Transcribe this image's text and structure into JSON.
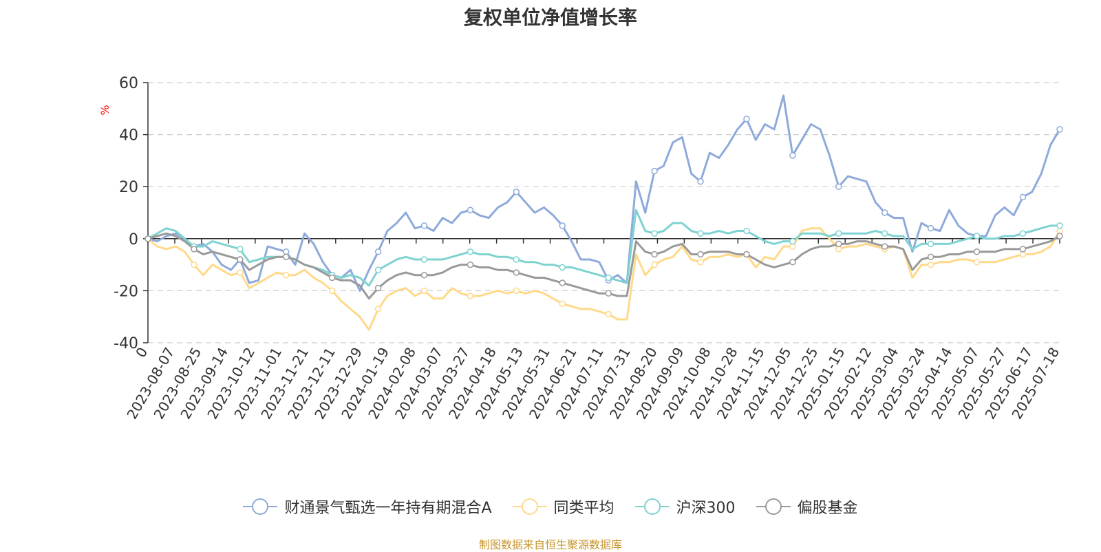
{
  "title": "复权单位净值增长率",
  "source_note": "制图数据来自恒生聚源数据库",
  "colors": {
    "fund": "#8eaadb",
    "peer_avg": "#ffd98a",
    "hs300": "#7ed3d1",
    "equity_fund": "#999999",
    "axis": "#333333",
    "grid": "#cccccc",
    "ylabel": "#ff0000",
    "source": "#c8952c"
  },
  "chart_data": {
    "type": "line",
    "title": "复权单位净值增长率",
    "ylabel": "%",
    "ylim": [
      -40,
      60
    ],
    "yticks": [
      -40,
      -20,
      0,
      20,
      40,
      60
    ],
    "grid": true,
    "legend_position": "bottom",
    "x_ticks": [
      "0",
      "2023-08-07",
      "2023-08-25",
      "2023-09-14",
      "2023-10-12",
      "2023-11-01",
      "2023-11-21",
      "2023-12-11",
      "2023-12-29",
      "2024-01-19",
      "2024-02-08",
      "2024-03-07",
      "2024-03-27",
      "2024-04-18",
      "2024-05-13",
      "2024-05-31",
      "2024-06-21",
      "2024-07-11",
      "2024-07-31",
      "2024-08-20",
      "2024-09-09",
      "2024-10-08",
      "2024-10-28",
      "2024-11-15",
      "2024-12-05",
      "2024-12-25",
      "2025-01-15",
      "2025-02-12",
      "2025-03-04",
      "2025-03-24",
      "2025-04-14",
      "2025-05-07",
      "2025-05-27",
      "2025-06-17",
      "2025-07-18"
    ],
    "series": [
      {
        "name": "财通景气甄选一年持有期混合A",
        "color": "#8eaadb",
        "values": [
          0,
          -1,
          1,
          2,
          0,
          -3,
          -2,
          -5,
          -10,
          -12,
          -8,
          -17,
          -16,
          -3,
          -4,
          -5,
          -10,
          2,
          -2,
          -9,
          -14,
          -15,
          -12,
          -20,
          -12,
          -5,
          3,
          6,
          10,
          4,
          5,
          3,
          8,
          6,
          10,
          11,
          9,
          8,
          12,
          14,
          18,
          14,
          10,
          12,
          9,
          5,
          -1,
          -8,
          -8,
          -9,
          -16,
          -14,
          -17,
          22,
          10,
          26,
          28,
          37,
          39,
          25,
          22,
          33,
          31,
          36,
          42,
          46,
          38,
          44,
          42,
          55,
          32,
          38,
          44,
          42,
          32,
          20,
          24,
          23,
          22,
          14,
          10,
          8,
          8,
          -5,
          6,
          4,
          3,
          11,
          5,
          2,
          1,
          1,
          9,
          12,
          9,
          16,
          18,
          25,
          36,
          42
        ]
      },
      {
        "name": "同类平均",
        "color": "#ffd98a",
        "values": [
          0,
          -3,
          -4,
          -3,
          -5,
          -10,
          -14,
          -10,
          -12,
          -14,
          -13,
          -19,
          -17,
          -15,
          -13,
          -14,
          -14,
          -12,
          -15,
          -17,
          -20,
          -24,
          -27,
          -30,
          -35,
          -27,
          -22,
          -20,
          -19,
          -22,
          -20,
          -23,
          -23,
          -19,
          -21,
          -22,
          -22,
          -21,
          -20,
          -21,
          -20,
          -21,
          -20,
          -21,
          -23,
          -25,
          -26,
          -27,
          -27,
          -28,
          -29,
          -31,
          -31,
          -6,
          -14,
          -10,
          -8,
          -7,
          -3,
          -8,
          -9,
          -7,
          -7,
          -6,
          -7,
          -6,
          -11,
          -7,
          -8,
          -3,
          -3,
          3,
          4,
          4,
          0,
          -4,
          -3,
          -3,
          -2,
          -3,
          -4,
          -3,
          -4,
          -15,
          -10,
          -10,
          -9,
          -9,
          -8,
          -8,
          -9,
          -9,
          -9,
          -8,
          -7,
          -6,
          -6,
          -5,
          -3,
          3
        ]
      },
      {
        "name": "沪深300",
        "color": "#7ed3d1",
        "values": [
          0,
          2,
          4,
          3,
          0,
          -3,
          -3,
          -1,
          -2,
          -3,
          -4,
          -9,
          -8,
          -7,
          -7,
          -7,
          -8,
          -10,
          -11,
          -12,
          -14,
          -15,
          -14,
          -15,
          -18,
          -12,
          -10,
          -8,
          -7,
          -8,
          -8,
          -8,
          -8,
          -7,
          -6,
          -5,
          -6,
          -6,
          -7,
          -7,
          -8,
          -9,
          -9,
          -10,
          -10,
          -11,
          -11,
          -12,
          -13,
          -14,
          -15,
          -16,
          -17,
          11,
          3,
          2,
          3,
          6,
          6,
          3,
          2,
          2,
          3,
          2,
          3,
          3,
          1,
          -1,
          -2,
          -1,
          -1,
          2,
          2,
          2,
          1,
          2,
          2,
          2,
          2,
          3,
          2,
          1,
          1,
          -4,
          -2,
          -2,
          -2,
          -2,
          -1,
          0,
          1,
          0,
          0,
          1,
          1,
          2,
          3,
          4,
          5,
          5
        ]
      },
      {
        "name": "偏股基金",
        "color": "#999999",
        "values": [
          0,
          1,
          2,
          1,
          -1,
          -4,
          -6,
          -5,
          -6,
          -7,
          -8,
          -12,
          -10,
          -8,
          -7,
          -7,
          -8,
          -10,
          -11,
          -13,
          -15,
          -16,
          -16,
          -18,
          -23,
          -19,
          -16,
          -14,
          -13,
          -14,
          -14,
          -14,
          -13,
          -11,
          -10,
          -10,
          -11,
          -11,
          -12,
          -12,
          -13,
          -14,
          -15,
          -15,
          -16,
          -17,
          -18,
          -19,
          -20,
          -21,
          -21,
          -22,
          -22,
          -1,
          -5,
          -6,
          -5,
          -3,
          -2,
          -6,
          -6,
          -5,
          -5,
          -5,
          -6,
          -6,
          -8,
          -10,
          -11,
          -10,
          -9,
          -6,
          -4,
          -3,
          -3,
          -2,
          -2,
          -1,
          -1,
          -2,
          -3,
          -3,
          -4,
          -12,
          -8,
          -7,
          -7,
          -6,
          -6,
          -5,
          -5,
          -5,
          -5,
          -4,
          -4,
          -4,
          -3,
          -2,
          -1,
          1
        ]
      }
    ]
  }
}
